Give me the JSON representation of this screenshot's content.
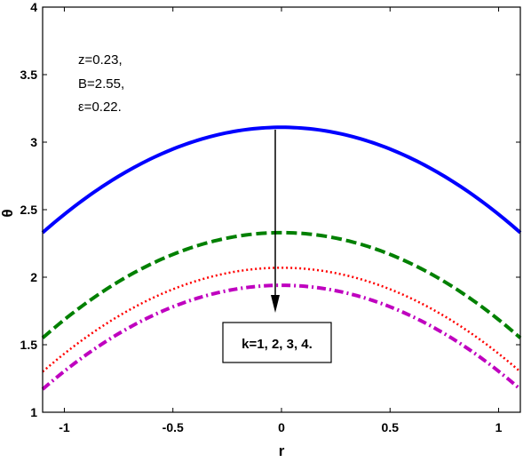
{
  "chart_data": {
    "type": "line",
    "title": "",
    "xlabel": "r",
    "ylabel": "θ",
    "xlim": [
      -1.1,
      1.1
    ],
    "ylim": [
      1,
      4
    ],
    "xticks": [
      "-1",
      "-0.5",
      "0",
      "0.5",
      "1"
    ],
    "xtick_values": [
      -1,
      -0.5,
      0,
      0.5,
      1
    ],
    "yticks": [
      "1",
      "1.5",
      "2",
      "2.5",
      "3",
      "3.5",
      "4"
    ],
    "ytick_values": [
      1,
      1.5,
      2,
      2.5,
      3,
      3.5,
      4
    ],
    "grid": false,
    "annotations": {
      "params": [
        "z=0.23,",
        "B=2.55,",
        "ε=0.22."
      ],
      "label_box": "k=1, 2, 3, 4."
    },
    "series": [
      {
        "color": "#0000ff",
        "style": "solid",
        "center": 3.11,
        "edge": 2.33
      },
      {
        "color": "#008000",
        "style": "dashed",
        "center": 2.33,
        "edge": 1.55
      },
      {
        "color": "#ff0000",
        "style": "dotted",
        "center": 2.07,
        "edge": 1.3
      },
      {
        "color": "#bf00bf",
        "style": "dashdot",
        "center": 1.94,
        "edge": 1.17
      }
    ]
  }
}
